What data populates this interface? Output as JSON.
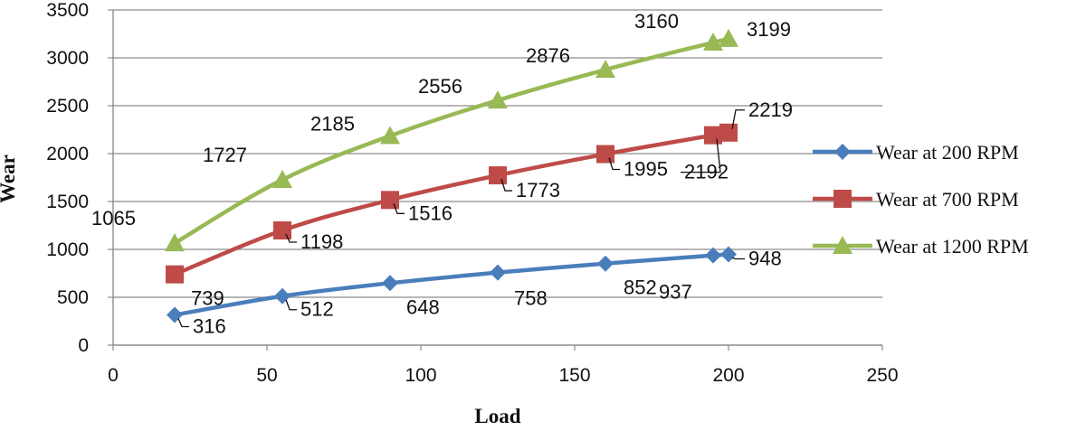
{
  "chart_data": {
    "type": "line",
    "xlabel": "Load",
    "ylabel": "Wear",
    "xlim": [
      0,
      250
    ],
    "ylim": [
      0,
      3500
    ],
    "x_ticks": [
      "0",
      "50",
      "100",
      "150",
      "200",
      "250"
    ],
    "y_ticks": [
      "0",
      "500",
      "1000",
      "1500",
      "2000",
      "2500",
      "3000",
      "3500"
    ],
    "grid": "horizontal",
    "legend_position": "right",
    "series": [
      {
        "name": "Wear at 200 RPM",
        "color": "#4a7ebb",
        "marker": "diamond",
        "x": [
          20,
          55,
          90,
          125,
          160,
          195,
          200
        ],
        "y": [
          316,
          512,
          648,
          758,
          852,
          937,
          948
        ],
        "labels": [
          "316",
          "512",
          "648",
          "758",
          "852",
          "937",
          "948"
        ]
      },
      {
        "name": "Wear at 700 RPM",
        "color": "#be4b48",
        "marker": "square",
        "x": [
          20,
          55,
          90,
          125,
          160,
          195,
          200
        ],
        "y": [
          739,
          1198,
          1516,
          1773,
          1995,
          2192,
          2219
        ],
        "labels": [
          "739",
          "1198",
          "1516",
          "1773",
          "1995",
          "2192",
          "2219"
        ]
      },
      {
        "name": "Wear at 1200 RPM",
        "color": "#98b954",
        "marker": "triangle",
        "x": [
          20,
          55,
          90,
          125,
          160,
          195,
          200
        ],
        "y": [
          1065,
          1727,
          2185,
          2556,
          2876,
          3160,
          3199
        ],
        "labels": [
          "1065",
          "1727",
          "2185",
          "2556",
          "2876",
          "3160",
          "3199"
        ]
      }
    ]
  }
}
